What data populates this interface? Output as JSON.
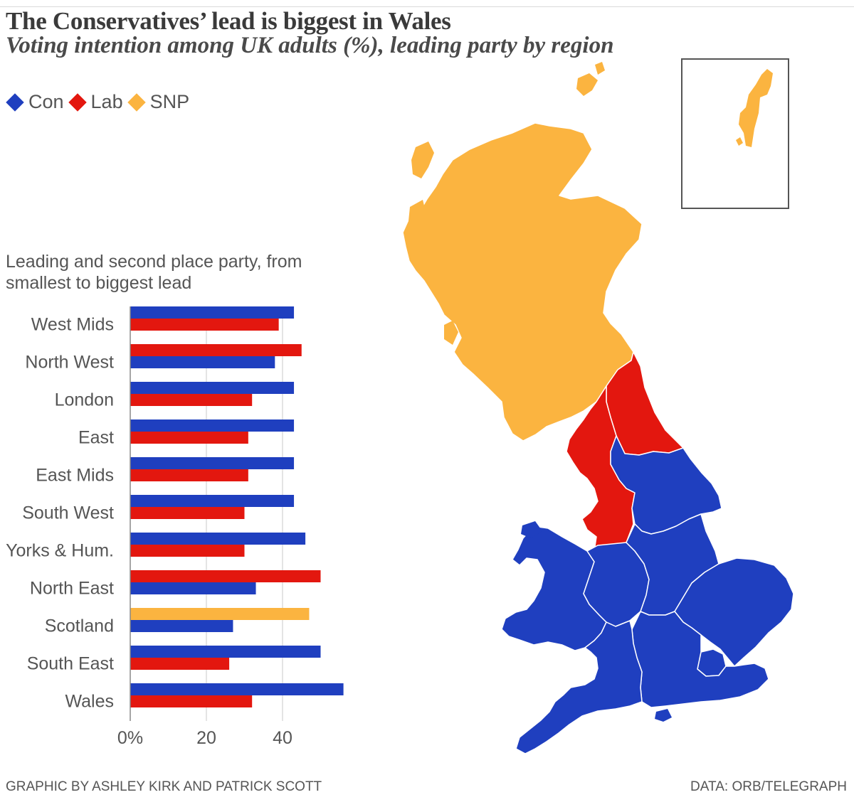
{
  "title": "The Conservatives’ lead is biggest in Wales",
  "subtitle": "Voting intention among UK adults (%), leading party by region",
  "legend": {
    "items": [
      {
        "label": "Con",
        "color": "#1f3fbf"
      },
      {
        "label": "Lab",
        "color": "#e3170f"
      },
      {
        "label": "SNP",
        "color": "#fbb440"
      }
    ]
  },
  "chart_note": "Leading and second place party, from smallest to biggest lead",
  "footer": {
    "credit": "GRAPHIC BY ASHLEY KIRK AND PATRICK SCOTT",
    "source": "DATA: ORB/TELEGRAPH"
  },
  "colors": {
    "Con": "#1f3fbf",
    "Lab": "#e3170f",
    "SNP": "#fbb440",
    "grid": "#c8c8c8",
    "axis": "#888888",
    "border": "#555555"
  },
  "chart_data": {
    "type": "bar",
    "orientation": "horizontal",
    "categories": [
      "West Mids",
      "North West",
      "London",
      "East",
      "East Mids",
      "South West",
      "Yorks & Hum.",
      "North East",
      "Scotland",
      "South East",
      "Wales"
    ],
    "rows": [
      {
        "bars": [
          {
            "party": "Con",
            "value": 43
          },
          {
            "party": "Lab",
            "value": 39
          }
        ]
      },
      {
        "bars": [
          {
            "party": "Lab",
            "value": 45
          },
          {
            "party": "Con",
            "value": 38
          }
        ]
      },
      {
        "bars": [
          {
            "party": "Con",
            "value": 43
          },
          {
            "party": "Lab",
            "value": 32
          }
        ]
      },
      {
        "bars": [
          {
            "party": "Con",
            "value": 43
          },
          {
            "party": "Lab",
            "value": 31
          }
        ]
      },
      {
        "bars": [
          {
            "party": "Con",
            "value": 43
          },
          {
            "party": "Lab",
            "value": 31
          }
        ]
      },
      {
        "bars": [
          {
            "party": "Con",
            "value": 43
          },
          {
            "party": "Lab",
            "value": 30
          }
        ]
      },
      {
        "bars": [
          {
            "party": "Con",
            "value": 46
          },
          {
            "party": "Lab",
            "value": 30
          }
        ]
      },
      {
        "bars": [
          {
            "party": "Lab",
            "value": 50
          },
          {
            "party": "Con",
            "value": 33
          }
        ]
      },
      {
        "bars": [
          {
            "party": "SNP",
            "value": 47
          },
          {
            "party": "Con",
            "value": 27
          }
        ]
      },
      {
        "bars": [
          {
            "party": "Con",
            "value": 50
          },
          {
            "party": "Lab",
            "value": 26
          }
        ]
      },
      {
        "bars": [
          {
            "party": "Con",
            "value": 56
          },
          {
            "party": "Lab",
            "value": 32
          }
        ]
      }
    ],
    "xticks": [
      0,
      20,
      40
    ],
    "xtick_labels": [
      "0%",
      "20",
      "40"
    ],
    "xlim": [
      0,
      60
    ],
    "grid": true
  },
  "map": {
    "regions": [
      {
        "name": "Scotland",
        "leader": "SNP"
      },
      {
        "name": "North East",
        "leader": "Lab"
      },
      {
        "name": "North West",
        "leader": "Lab"
      },
      {
        "name": "Yorks & Hum.",
        "leader": "Con"
      },
      {
        "name": "Wales",
        "leader": "Con"
      },
      {
        "name": "West Mids",
        "leader": "Con"
      },
      {
        "name": "East Mids",
        "leader": "Con"
      },
      {
        "name": "East",
        "leader": "Con"
      },
      {
        "name": "London",
        "leader": "Con"
      },
      {
        "name": "South East",
        "leader": "Con"
      },
      {
        "name": "South West",
        "leader": "Con"
      }
    ],
    "inset": {
      "name": "Shetland",
      "leader": "SNP"
    }
  }
}
